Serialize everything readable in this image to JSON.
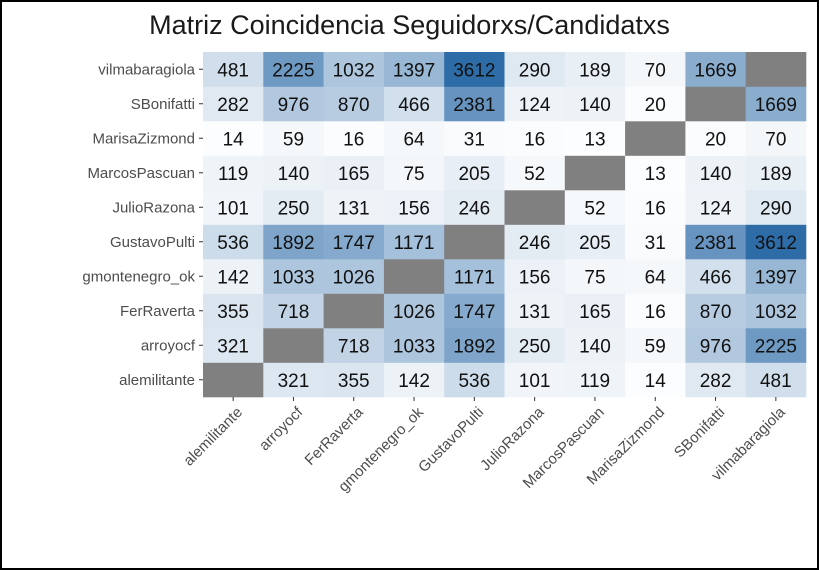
{
  "chart_data": {
    "type": "heatmap",
    "title": "Matriz Coincidencia Seguidorxs/Candidatxs",
    "xlabel": "",
    "ylabel": "",
    "x_categories": [
      "alemilitante",
      "arroyocf",
      "FerRaverta",
      "gmontenegro_ok",
      "GustavoPulti",
      "JulioRazona",
      "MarcosPascuan",
      "MarisaZizmond",
      "SBonifatti",
      "vilmabaragiola"
    ],
    "y_categories": [
      "alemilitante",
      "arroyocf",
      "FerRaverta",
      "gmontenegro_ok",
      "GustavoPulti",
      "JulioRazona",
      "MarcosPascuan",
      "MarisaZizmond",
      "SBonifatti",
      "vilmabaragiola"
    ],
    "values": [
      [
        null,
        321,
        355,
        142,
        536,
        101,
        119,
        14,
        282,
        481
      ],
      [
        321,
        null,
        718,
        1033,
        1892,
        250,
        140,
        59,
        976,
        2225
      ],
      [
        355,
        718,
        null,
        1026,
        1747,
        131,
        165,
        16,
        870,
        1032
      ],
      [
        142,
        1033,
        1026,
        null,
        1171,
        156,
        75,
        64,
        466,
        1397
      ],
      [
        536,
        1892,
        1747,
        1171,
        null,
        246,
        205,
        31,
        2381,
        3612
      ],
      [
        101,
        250,
        131,
        156,
        246,
        null,
        52,
        16,
        124,
        290
      ],
      [
        119,
        140,
        165,
        75,
        205,
        52,
        null,
        13,
        140,
        189
      ],
      [
        14,
        59,
        16,
        64,
        31,
        16,
        13,
        null,
        20,
        70
      ],
      [
        282,
        976,
        870,
        466,
        2381,
        124,
        140,
        20,
        null,
        1669
      ],
      [
        481,
        2225,
        1032,
        1397,
        3612,
        290,
        189,
        70,
        1669,
        null
      ]
    ],
    "value_range": [
      0,
      3612
    ],
    "color_low": "#ffffff",
    "color_high": "#2e6ca8",
    "na_color": "#808080",
    "panel_background": "#ebebeb",
    "legend": "none",
    "grid": true
  }
}
